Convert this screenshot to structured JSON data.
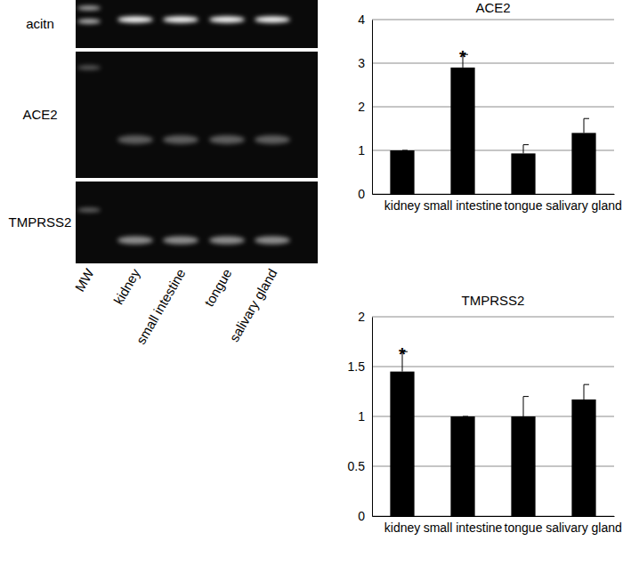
{
  "gel": {
    "rows": [
      "acitn",
      "ACE2",
      "TMPRSS2"
    ],
    "lanes": [
      "MW",
      "kidney",
      "small intestine",
      "tongue",
      "salivary gland"
    ]
  },
  "chart_data": [
    {
      "type": "bar",
      "title": "ACE2",
      "categories": [
        "kidney",
        "small intestine",
        "tongue",
        "salivary gland"
      ],
      "values": [
        1,
        2.9,
        0.93,
        1.4
      ],
      "errors": [
        0,
        0.3,
        0.2,
        0.33
      ],
      "color": "#000000",
      "ylim": [
        0,
        4
      ],
      "yticks": [
        0,
        1,
        2,
        3,
        4
      ],
      "grid": true,
      "annotations": [
        {
          "text": "*",
          "category": "small intestine"
        }
      ]
    },
    {
      "type": "bar",
      "title": "TMPRSS2",
      "categories": [
        "kidney",
        "small intestine",
        "tongue",
        "salivary gland"
      ],
      "values": [
        1.45,
        1.0,
        1.0,
        1.17
      ],
      "errors": [
        0.2,
        0,
        0.2,
        0.15
      ],
      "color": "#000000",
      "ylim": [
        0,
        2
      ],
      "yticks": [
        0,
        0.5,
        1,
        1.5,
        2
      ],
      "grid": true,
      "annotations": [
        {
          "text": "*",
          "category": "kidney"
        }
      ]
    }
  ]
}
